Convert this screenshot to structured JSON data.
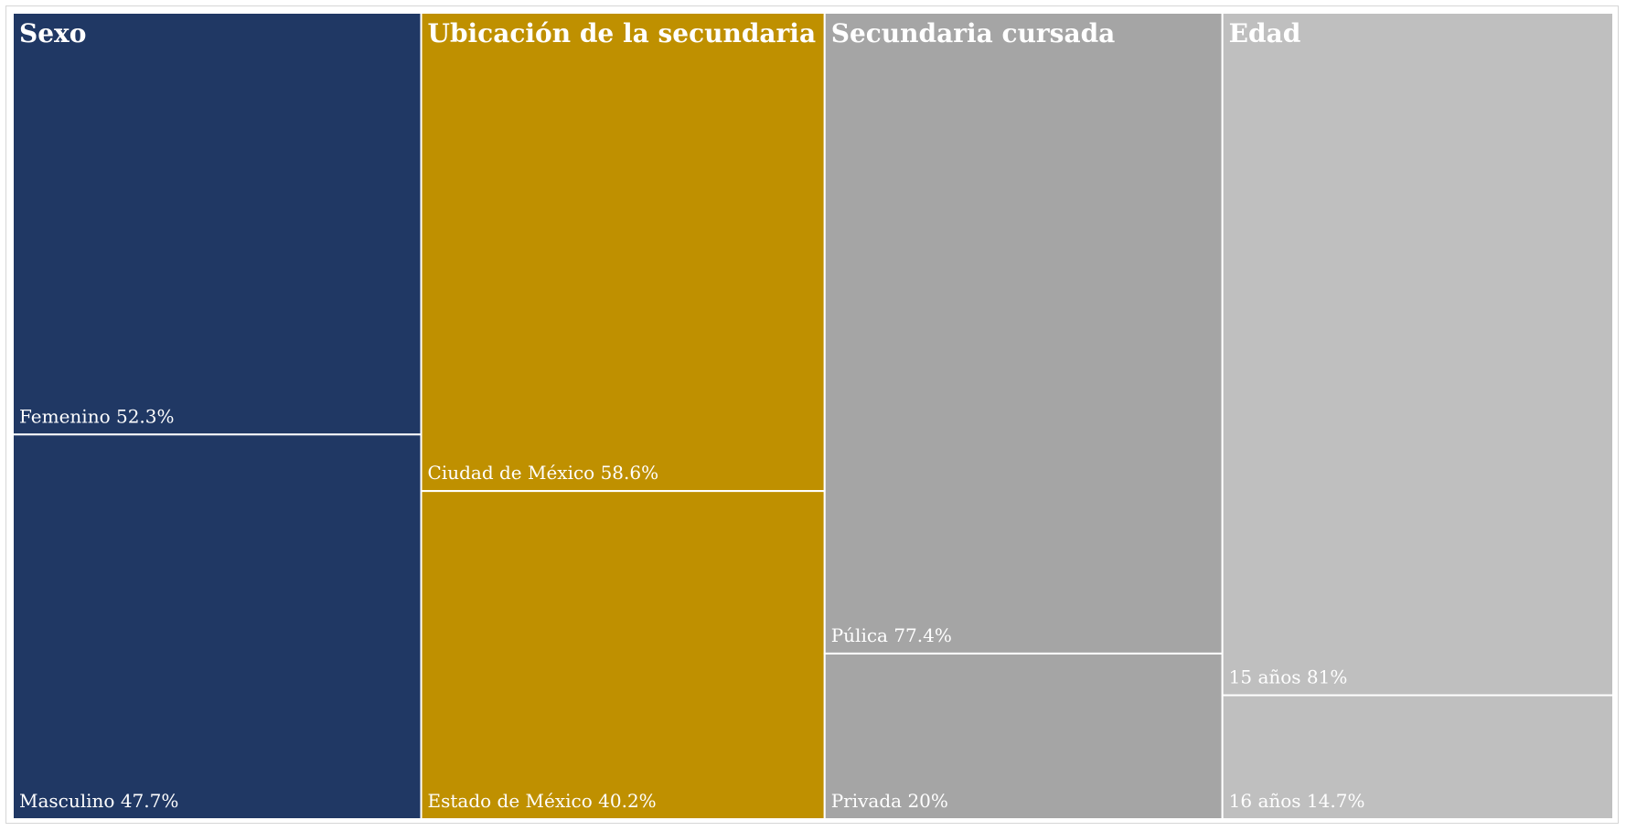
{
  "chart_data": {
    "type": "treemap",
    "groups": [
      {
        "name": "Sexo",
        "color": "#203864",
        "items": [
          {
            "name": "Femenino",
            "value": 52.3,
            "label": "Femenino 52.3%"
          },
          {
            "name": "Masculino",
            "value": 47.7,
            "label": "Masculino 47.7%"
          }
        ]
      },
      {
        "name": "Ubicación de la secundaria",
        "color": "#BF9000",
        "items": [
          {
            "name": "Ciudad de México",
            "value": 58.6,
            "label": "Ciudad de México 58.6%"
          },
          {
            "name": "Estado de México",
            "value": 40.2,
            "label": "Estado de México 40.2%"
          }
        ]
      },
      {
        "name": "Secundaria cursada",
        "color": "#A5A5A5",
        "items": [
          {
            "name": "Púlica",
            "value": 77.4,
            "label": "Púlica 77.4%"
          },
          {
            "name": "Privada",
            "value": 20,
            "label": "Privada 20%"
          }
        ]
      },
      {
        "name": "Edad",
        "color": "#BFBFBF",
        "items": [
          {
            "name": "15 años",
            "value": 81,
            "label": "15 años 81%"
          },
          {
            "name": "16 años",
            "value": 14.7,
            "label": "16 años 14.7%"
          }
        ]
      }
    ]
  }
}
